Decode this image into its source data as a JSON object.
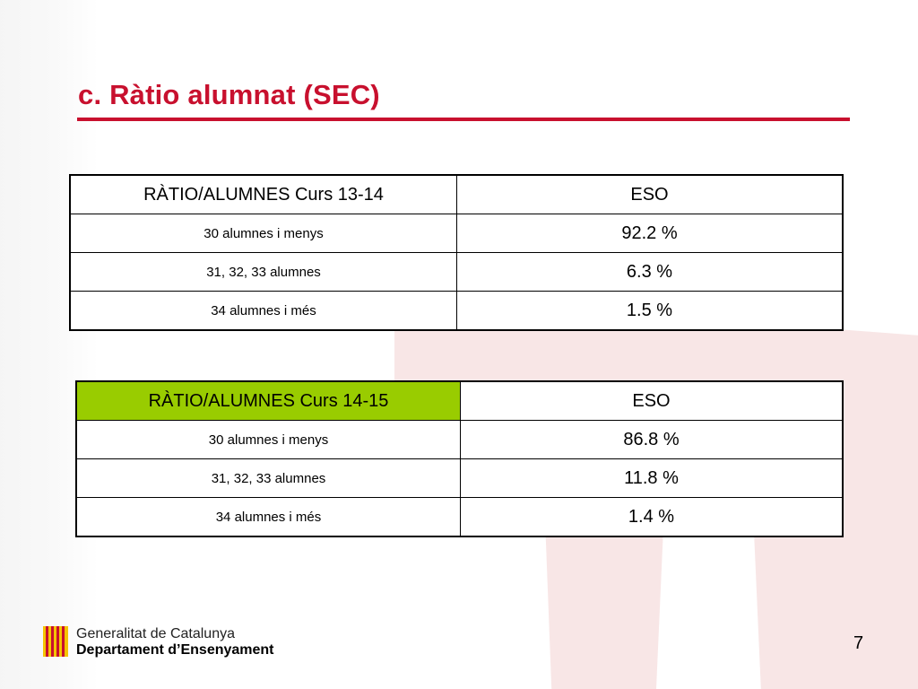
{
  "slide": {
    "title": "c. Ràtio alumnat (SEC)",
    "page_number": "7",
    "accent_color": "#c8102e",
    "highlight_color": "#99cc00"
  },
  "tables": [
    {
      "header": {
        "label": "RÀTIO/ALUMNES Curs 13-14",
        "value": "ESO"
      },
      "rows": [
        {
          "label": "30 alumnes i menys",
          "value": "92.2 %"
        },
        {
          "label": "31, 32, 33 alumnes",
          "value": "6.3 %"
        },
        {
          "label": "34 alumnes i més",
          "value": "1.5 %"
        }
      ]
    },
    {
      "header": {
        "label": "RÀTIO/ALUMNES Curs 14-15",
        "value": "ESO"
      },
      "rows": [
        {
          "label": "30 alumnes i menys",
          "value": "86.8 %"
        },
        {
          "label": "31, 32, 33 alumnes",
          "value": "11.8 %"
        },
        {
          "label": "34 alumnes i més",
          "value": "1.4 %"
        }
      ]
    }
  ],
  "footer": {
    "logo_icon": "senyera-flag-icon",
    "line1": "Generalitat de Catalunya",
    "line2": "Departament d’Ensenyament"
  }
}
